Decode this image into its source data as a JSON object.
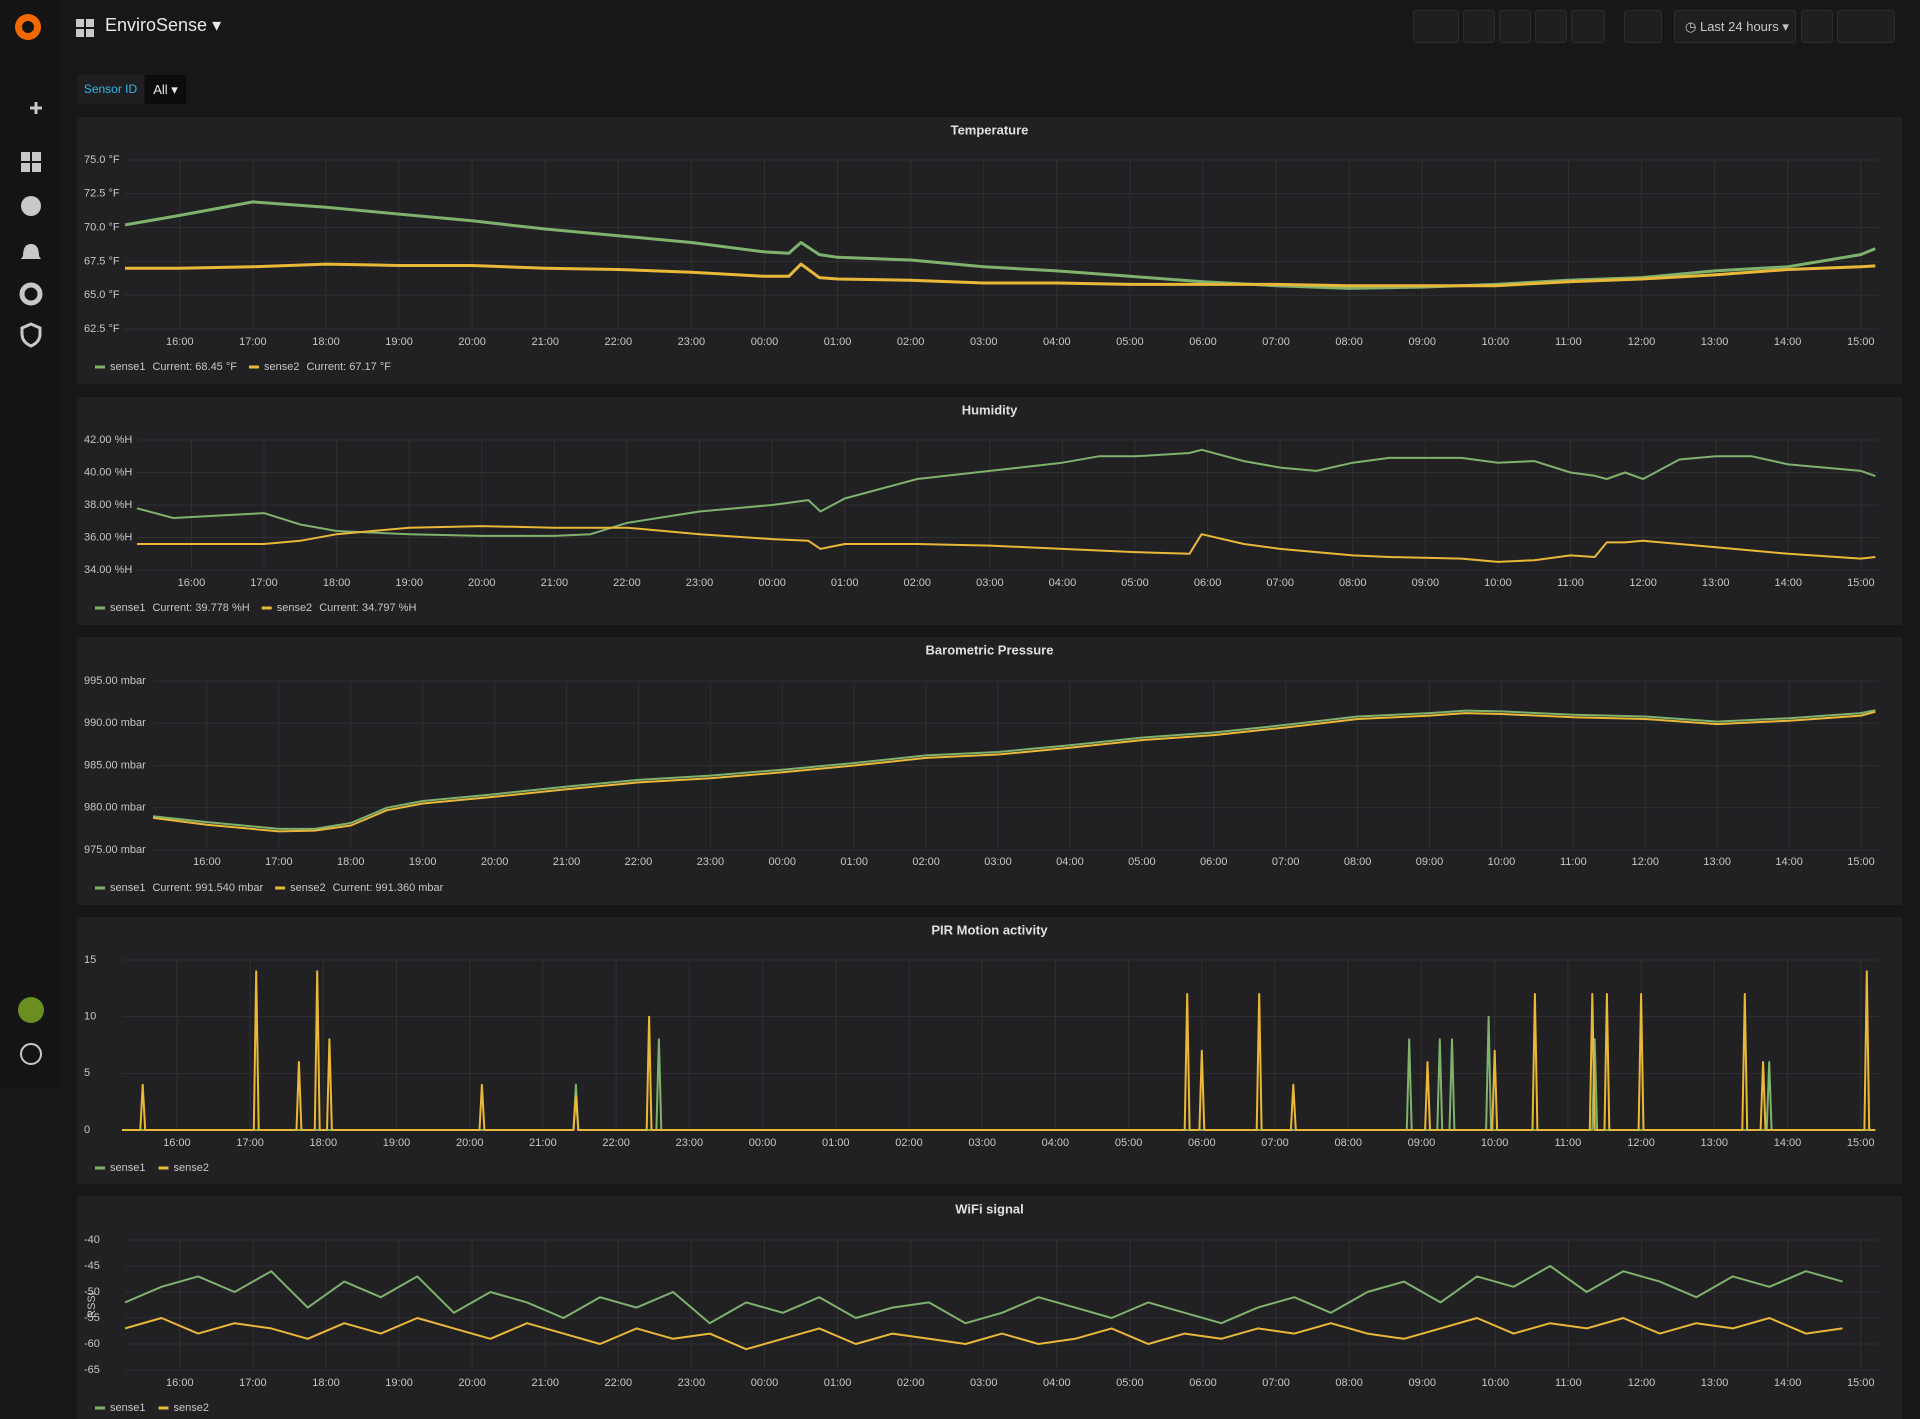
{
  "header": {
    "title": "EnviroSense",
    "time_range": "Last 24 hours"
  },
  "variables": [
    {
      "label": "Sensor ID",
      "value": "All"
    }
  ],
  "chart_data": [
    {
      "type": "line",
      "title": "Temperature",
      "grid": true,
      "legend": "bottom-left",
      "x": [
        "15:15",
        "16:00",
        "17:00",
        "18:00",
        "19:00",
        "20:00",
        "21:00",
        "22:00",
        "23:00",
        "00:00",
        "00:20",
        "00:30",
        "00:45",
        "01:00",
        "02:00",
        "03:00",
        "04:00",
        "05:00",
        "06:00",
        "07:00",
        "08:00",
        "09:00",
        "10:00",
        "11:00",
        "12:00",
        "13:00",
        "14:00",
        "15:00",
        "15:12"
      ],
      "xlim": [
        "15:15",
        "15:15"
      ],
      "xticks": [
        "16:00",
        "17:00",
        "18:00",
        "19:00",
        "20:00",
        "21:00",
        "22:00",
        "23:00",
        "00:00",
        "01:00",
        "02:00",
        "03:00",
        "04:00",
        "05:00",
        "06:00",
        "07:00",
        "08:00",
        "09:00",
        "10:00",
        "11:00",
        "12:00",
        "13:00",
        "14:00",
        "15:00"
      ],
      "ylim": [
        62.5,
        75
      ],
      "yticks": [
        {
          "value": 62.5,
          "label": "62.5 °F"
        },
        {
          "value": 65,
          "label": "65.0 °F"
        },
        {
          "value": 67.5,
          "label": "67.5 °F"
        },
        {
          "value": 70,
          "label": "70.0 °F"
        },
        {
          "value": 72.5,
          "label": "72.5 °F"
        },
        {
          "value": 75,
          "label": "75.0 °F"
        }
      ],
      "series": [
        {
          "name": "sense1",
          "color": "#7eb26d",
          "current": "Current: 68.45 °F",
          "values": [
            70.2,
            70.9,
            71.9,
            71.5,
            71.0,
            70.5,
            69.9,
            69.4,
            68.9,
            68.2,
            68.1,
            68.9,
            68.0,
            67.8,
            67.6,
            67.1,
            66.8,
            66.4,
            66.0,
            65.7,
            65.5,
            65.6,
            65.8,
            66.1,
            66.3,
            66.8,
            67.1,
            68.0,
            68.45
          ]
        },
        {
          "name": "sense2",
          "color": "#eab839",
          "current": "Current: 67.17 °F",
          "values": [
            67.0,
            67.0,
            67.1,
            67.3,
            67.2,
            67.2,
            67.0,
            66.9,
            66.7,
            66.4,
            66.4,
            67.3,
            66.3,
            66.2,
            66.1,
            65.9,
            65.9,
            65.8,
            65.8,
            65.8,
            65.7,
            65.7,
            65.7,
            66.0,
            66.2,
            66.5,
            66.9,
            67.1,
            67.17
          ]
        }
      ]
    },
    {
      "type": "line",
      "title": "Humidity",
      "grid": true,
      "legend": "bottom-left",
      "x": [
        "15:15",
        "15:45",
        "17:00",
        "17:30",
        "18:00",
        "19:00",
        "20:00",
        "21:00",
        "21:30",
        "22:00",
        "23:00",
        "00:00",
        "00:30",
        "00:40",
        "01:00",
        "02:00",
        "03:00",
        "04:00",
        "04:30",
        "05:00",
        "05:45",
        "05:55",
        "06:30",
        "07:00",
        "07:30",
        "08:00",
        "08:30",
        "09:30",
        "10:00",
        "10:30",
        "11:00",
        "11:20",
        "11:30",
        "11:45",
        "12:00",
        "12:30",
        "13:00",
        "13:30",
        "14:00",
        "15:00",
        "15:12"
      ],
      "xlim": [
        "15:15",
        "15:15"
      ],
      "xticks": [
        "16:00",
        "17:00",
        "18:00",
        "19:00",
        "20:00",
        "21:00",
        "22:00",
        "23:00",
        "00:00",
        "01:00",
        "02:00",
        "03:00",
        "04:00",
        "05:00",
        "06:00",
        "07:00",
        "08:00",
        "09:00",
        "10:00",
        "11:00",
        "12:00",
        "13:00",
        "14:00",
        "15:00"
      ],
      "ylim": [
        34,
        42
      ],
      "yticks": [
        {
          "value": 34,
          "label": "34.00 %H"
        },
        {
          "value": 36,
          "label": "36.00 %H"
        },
        {
          "value": 38,
          "label": "38.00 %H"
        },
        {
          "value": 40,
          "label": "40.00 %H"
        },
        {
          "value": 42,
          "label": "42.00 %H"
        }
      ],
      "series": [
        {
          "name": "sense1",
          "color": "#7eb26d",
          "current": "Current: 39.778 %H",
          "values": [
            37.8,
            37.2,
            37.5,
            36.8,
            36.4,
            36.2,
            36.1,
            36.1,
            36.2,
            36.9,
            37.6,
            38.0,
            38.3,
            37.6,
            38.4,
            39.6,
            40.1,
            40.6,
            41.0,
            41.0,
            41.2,
            41.4,
            40.7,
            40.3,
            40.1,
            40.6,
            40.9,
            40.9,
            40.6,
            40.7,
            40.0,
            39.8,
            39.6,
            40.0,
            39.6,
            40.8,
            41.0,
            41.0,
            40.5,
            40.1,
            39.778
          ]
        },
        {
          "name": "sense2",
          "color": "#eab839",
          "current": "Current: 34.797 %H",
          "values": [
            35.6,
            35.6,
            35.6,
            35.8,
            36.2,
            36.6,
            36.7,
            36.6,
            36.6,
            36.6,
            36.2,
            35.9,
            35.8,
            35.3,
            35.6,
            35.6,
            35.5,
            35.3,
            35.2,
            35.1,
            35.0,
            36.2,
            35.6,
            35.3,
            35.1,
            34.9,
            34.8,
            34.7,
            34.5,
            34.6,
            34.9,
            34.8,
            35.7,
            35.7,
            35.8,
            35.6,
            35.4,
            35.2,
            35.0,
            34.7,
            34.797
          ]
        }
      ]
    },
    {
      "type": "line",
      "title": "Barometric Pressure",
      "grid": true,
      "legend": "bottom-left",
      "x": [
        "15:15",
        "16:00",
        "17:00",
        "17:30",
        "18:00",
        "18:30",
        "19:00",
        "20:00",
        "21:00",
        "22:00",
        "23:00",
        "00:00",
        "01:00",
        "02:00",
        "03:00",
        "04:00",
        "05:00",
        "06:00",
        "07:00",
        "08:00",
        "09:00",
        "09:30",
        "10:00",
        "11:00",
        "12:00",
        "13:00",
        "14:00",
        "15:00",
        "15:12"
      ],
      "xlim": [
        "15:15",
        "15:15"
      ],
      "xticks": [
        "16:00",
        "17:00",
        "18:00",
        "19:00",
        "20:00",
        "21:00",
        "22:00",
        "23:00",
        "00:00",
        "01:00",
        "02:00",
        "03:00",
        "04:00",
        "05:00",
        "06:00",
        "07:00",
        "08:00",
        "09:00",
        "10:00",
        "11:00",
        "12:00",
        "13:00",
        "14:00",
        "15:00"
      ],
      "ylim": [
        975,
        995
      ],
      "yticks": [
        {
          "value": 975,
          "label": "975.00 mbar"
        },
        {
          "value": 980,
          "label": "980.00 mbar"
        },
        {
          "value": 985,
          "label": "985.00 mbar"
        },
        {
          "value": 990,
          "label": "990.00 mbar"
        },
        {
          "value": 995,
          "label": "995.00 mbar"
        }
      ],
      "series": [
        {
          "name": "sense1",
          "color": "#7eb26d",
          "current": "Current: 991.540 mbar",
          "values": [
            979.0,
            978.3,
            977.5,
            977.5,
            978.2,
            980.0,
            980.8,
            981.6,
            982.5,
            983.3,
            983.8,
            984.5,
            985.3,
            986.2,
            986.6,
            987.4,
            988.3,
            988.9,
            989.8,
            990.8,
            991.2,
            991.5,
            991.4,
            991.0,
            990.8,
            990.2,
            990.6,
            991.2,
            991.54
          ]
        },
        {
          "name": "sense2",
          "color": "#eab839",
          "current": "Current: 991.360 mbar",
          "values": [
            978.8,
            978.0,
            977.2,
            977.3,
            977.9,
            979.7,
            980.5,
            981.3,
            982.2,
            983.0,
            983.5,
            984.2,
            985.0,
            985.9,
            986.3,
            987.1,
            988.0,
            988.6,
            989.5,
            990.5,
            990.9,
            991.2,
            991.1,
            990.7,
            990.5,
            989.9,
            990.3,
            990.9,
            991.36
          ]
        }
      ]
    },
    {
      "type": "line",
      "title": "PIR Motion activity",
      "grid": true,
      "legend": "bottom-left",
      "xlim": [
        "15:15",
        "15:15"
      ],
      "xticks": [
        "16:00",
        "17:00",
        "18:00",
        "19:00",
        "20:00",
        "21:00",
        "22:00",
        "23:00",
        "00:00",
        "01:00",
        "02:00",
        "03:00",
        "04:00",
        "05:00",
        "06:00",
        "07:00",
        "08:00",
        "09:00",
        "10:00",
        "11:00",
        "12:00",
        "13:00",
        "14:00",
        "15:00"
      ],
      "ylim": [
        0,
        15
      ],
      "yticks": [
        0,
        5,
        10,
        15
      ],
      "series": [
        {
          "name": "sense1",
          "color": "#7eb26d",
          "x": [
            "15:15",
            "21:25",
            "21:27",
            "21:29",
            "22:33",
            "22:35",
            "22:37",
            "08:48",
            "08:50",
            "08:52",
            "09:13",
            "09:15",
            "09:17",
            "09:23",
            "09:25",
            "09:27",
            "09:53",
            "09:55",
            "09:57",
            "11:20",
            "11:22",
            "11:24",
            "13:43",
            "13:45",
            "13:47",
            "15:12"
          ],
          "values": [
            0,
            0,
            4,
            0,
            0,
            8,
            0,
            0,
            8,
            0,
            0,
            8,
            0,
            0,
            8,
            0,
            0,
            10,
            0,
            0,
            8,
            0,
            0,
            6,
            0,
            0
          ]
        },
        {
          "name": "sense2",
          "color": "#eab839",
          "x": [
            "15:15",
            "15:30",
            "15:32",
            "15:34",
            "17:03",
            "17:05",
            "17:07",
            "17:38",
            "17:40",
            "17:42",
            "17:53",
            "17:55",
            "17:57",
            "18:03",
            "18:05",
            "18:07",
            "20:08",
            "20:10",
            "20:12",
            "21:25",
            "21:27",
            "21:29",
            "22:25",
            "22:27",
            "22:29",
            "05:46",
            "05:48",
            "05:50",
            "05:58",
            "06:00",
            "06:02",
            "06:45",
            "06:47",
            "06:49",
            "07:13",
            "07:15",
            "07:17",
            "09:03",
            "09:05",
            "09:07",
            "09:58",
            "10:00",
            "10:02",
            "10:31",
            "10:33",
            "10:35",
            "11:18",
            "11:20",
            "11:22",
            "11:30",
            "11:32",
            "11:34",
            "11:58",
            "12:00",
            "12:02",
            "13:23",
            "13:25",
            "13:27",
            "13:38",
            "13:40",
            "13:42",
            "15:03",
            "15:05",
            "15:07",
            "15:12"
          ],
          "values": [
            0,
            0,
            4,
            0,
            0,
            14,
            0,
            0,
            6,
            0,
            0,
            14,
            0,
            0,
            8,
            0,
            0,
            4,
            0,
            0,
            3,
            0,
            0,
            10,
            0,
            0,
            12,
            0,
            0,
            7,
            0,
            0,
            12,
            0,
            0,
            4,
            0,
            0,
            6,
            0,
            0,
            7,
            0,
            0,
            12,
            0,
            0,
            12,
            0,
            0,
            12,
            0,
            0,
            12,
            0,
            0,
            12,
            0,
            0,
            6,
            0,
            0,
            14,
            0,
            0
          ]
        }
      ]
    },
    {
      "type": "line",
      "title": "WiFi signal",
      "ylabel": "RSSI",
      "grid": true,
      "legend": "bottom-left",
      "x": [
        "15:15",
        "15:45",
        "16:15",
        "16:45",
        "17:15",
        "17:45",
        "18:15",
        "18:45",
        "19:15",
        "19:45",
        "20:15",
        "20:45",
        "21:15",
        "21:45",
        "22:15",
        "22:45",
        "23:15",
        "23:45",
        "00:15",
        "00:45",
        "01:15",
        "01:45",
        "02:15",
        "02:45",
        "03:15",
        "03:45",
        "04:15",
        "04:45",
        "05:15",
        "05:45",
        "06:15",
        "06:45",
        "07:15",
        "07:45",
        "08:15",
        "08:45",
        "09:15",
        "09:45",
        "10:15",
        "10:45",
        "11:15",
        "11:45",
        "12:15",
        "12:45",
        "13:15",
        "13:45",
        "14:15",
        "14:45"
      ],
      "xlim": [
        "15:15",
        "15:15"
      ],
      "xticks": [
        "16:00",
        "17:00",
        "18:00",
        "19:00",
        "20:00",
        "21:00",
        "22:00",
        "23:00",
        "00:00",
        "01:00",
        "02:00",
        "03:00",
        "04:00",
        "05:00",
        "06:00",
        "07:00",
        "08:00",
        "09:00",
        "10:00",
        "11:00",
        "12:00",
        "13:00",
        "14:00",
        "15:00"
      ],
      "ylim": [
        -65,
        -40
      ],
      "yticks": [
        -65,
        -60,
        -55,
        -50,
        -45,
        -40
      ],
      "series": [
        {
          "name": "sense1",
          "color": "#7eb26d",
          "values": [
            -52,
            -49,
            -47,
            -50,
            -46,
            -53,
            -48,
            -51,
            -47,
            -54,
            -50,
            -52,
            -55,
            -51,
            -53,
            -50,
            -56,
            -52,
            -54,
            -51,
            -55,
            -53,
            -52,
            -56,
            -54,
            -51,
            -53,
            -55,
            -52,
            -54,
            -56,
            -53,
            -51,
            -54,
            -50,
            -48,
            -52,
            -47,
            -49,
            -45,
            -50,
            -46,
            -48,
            -51,
            -47,
            -49,
            -46,
            -48
          ]
        },
        {
          "name": "sense2",
          "color": "#eab839",
          "values": [
            -57,
            -55,
            -58,
            -56,
            -57,
            -59,
            -56,
            -58,
            -55,
            -57,
            -59,
            -56,
            -58,
            -60,
            -57,
            -59,
            -58,
            -61,
            -59,
            -57,
            -60,
            -58,
            -59,
            -60,
            -58,
            -60,
            -59,
            -57,
            -60,
            -58,
            -59,
            -57,
            -58,
            -56,
            -58,
            -59,
            -57,
            -55,
            -58,
            -56,
            -57,
            -55,
            -58,
            -56,
            -57,
            -55,
            -58,
            -57
          ]
        }
      ]
    }
  ]
}
